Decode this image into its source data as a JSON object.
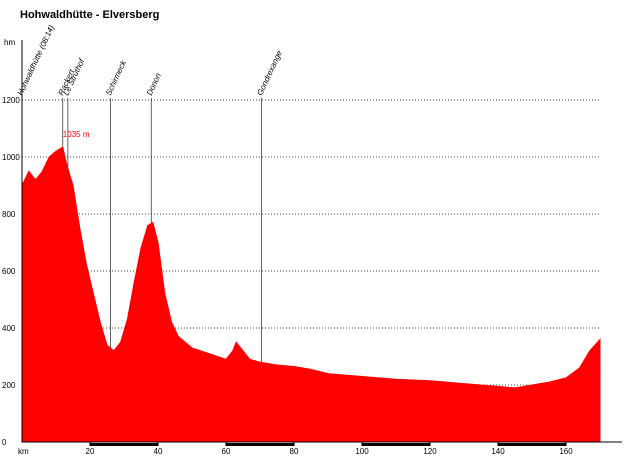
{
  "chart_data": {
    "type": "area",
    "title": "Hohwaldhütte - Elversberg",
    "y_label": "hm",
    "x_label": "km",
    "color": "#ff0000",
    "grid": true,
    "x": [
      0,
      2,
      4,
      6,
      8,
      10,
      12,
      13,
      15,
      17,
      19,
      21,
      23,
      25,
      27,
      29,
      31,
      33,
      35,
      37,
      38.5,
      40,
      42,
      44,
      46,
      50,
      55,
      60,
      62,
      63,
      65,
      67,
      70,
      75,
      80,
      85,
      90,
      100,
      110,
      120,
      130,
      140,
      145,
      150,
      155,
      160,
      164,
      167,
      170
    ],
    "values": [
      900,
      950,
      920,
      950,
      1000,
      1020,
      1035,
      980,
      900,
      750,
      620,
      520,
      420,
      340,
      320,
      350,
      430,
      560,
      680,
      760,
      770,
      700,
      520,
      420,
      370,
      330,
      310,
      290,
      320,
      350,
      320,
      290,
      280,
      270,
      265,
      255,
      240,
      230,
      220,
      215,
      205,
      195,
      190,
      200,
      210,
      225,
      260,
      320,
      360
    ],
    "xlim": [
      0,
      170
    ],
    "xticks": [
      20,
      40,
      60,
      80,
      100,
      120,
      140,
      160
    ],
    "ylim": [
      0,
      1200
    ],
    "yticks": [
      0,
      200,
      400,
      600,
      800,
      1000,
      1200
    ],
    "markers": [
      {
        "label": "Hohwaldhütte (08:14)",
        "x": 0
      },
      {
        "label": "Rackert",
        "x": 12
      },
      {
        "label": "Le Struthof",
        "x": 13.5
      },
      {
        "label": "Schirmeck",
        "x": 26
      },
      {
        "label": "Donon",
        "x": 38
      },
      {
        "label": "Gondrexange",
        "x": 70.5
      }
    ],
    "annotation": {
      "text": "1035 m",
      "x": 12,
      "y": 1035
    }
  }
}
